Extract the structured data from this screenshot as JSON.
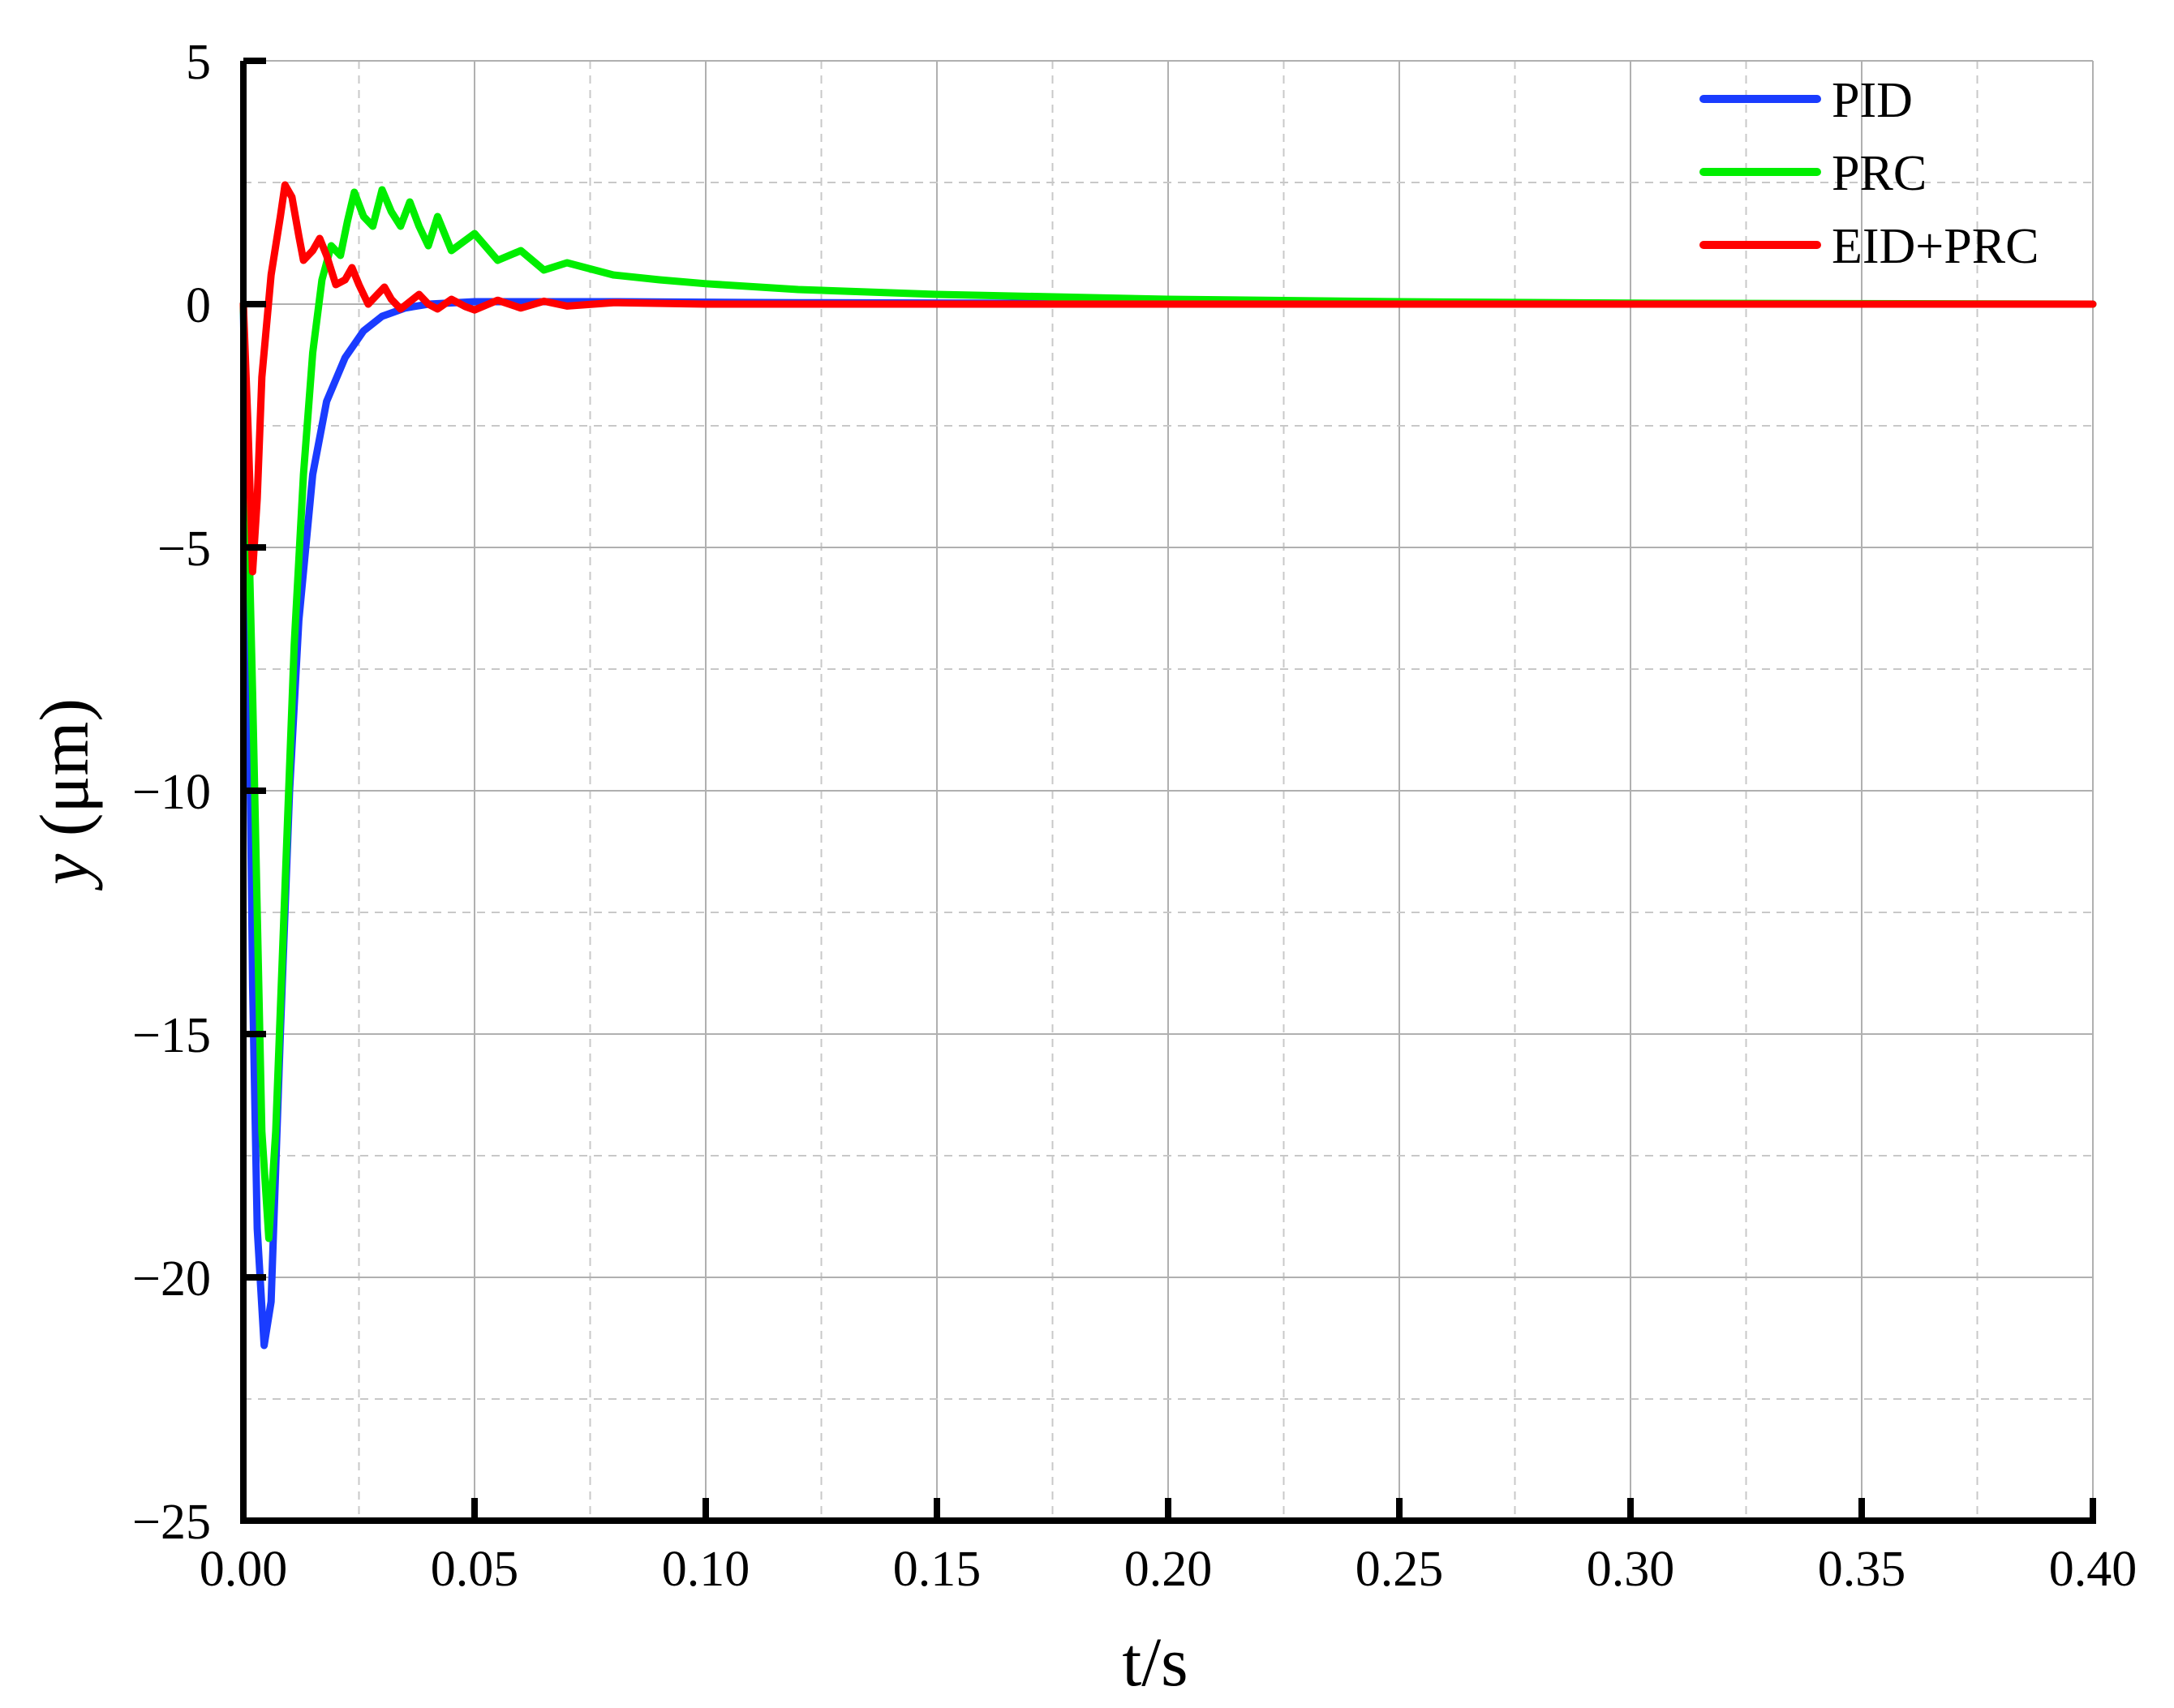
{
  "chart_data": {
    "type": "line",
    "title": "",
    "xlabel": "t/s",
    "ylabel_italic": "y",
    "ylabel_unit": " (μm)",
    "xlim": [
      0,
      0.4
    ],
    "ylim": [
      -25,
      5
    ],
    "x_ticks": [
      0,
      0.05,
      0.1,
      0.15,
      0.2,
      0.25,
      0.3,
      0.35,
      0.4
    ],
    "x_tick_labels": [
      "0.00",
      "0.05",
      "0.10",
      "0.15",
      "0.20",
      "0.25",
      "0.30",
      "0.35",
      "0.40"
    ],
    "y_ticks": [
      5,
      0,
      -5,
      -10,
      -15,
      -20,
      -25
    ],
    "y_tick_labels": [
      "5",
      "0",
      "−5",
      "−10",
      "−15",
      "−20",
      "−25"
    ],
    "grid": true,
    "legend_position": "top-right",
    "series": [
      {
        "name": "PID",
        "color": "#1a3cff",
        "points": [
          [
            0,
            0
          ],
          [
            0.001,
            -6
          ],
          [
            0.002,
            -14
          ],
          [
            0.003,
            -19
          ],
          [
            0.0045,
            -21.4
          ],
          [
            0.006,
            -20.5
          ],
          [
            0.008,
            -15
          ],
          [
            0.01,
            -10
          ],
          [
            0.012,
            -6.5
          ],
          [
            0.015,
            -3.5
          ],
          [
            0.018,
            -2
          ],
          [
            0.022,
            -1.1
          ],
          [
            0.026,
            -0.55
          ],
          [
            0.03,
            -0.25
          ],
          [
            0.035,
            -0.08
          ],
          [
            0.04,
            0
          ],
          [
            0.05,
            0.05
          ],
          [
            0.08,
            0.05
          ],
          [
            0.12,
            0.03
          ],
          [
            0.2,
            0.01
          ],
          [
            0.3,
            0
          ],
          [
            0.4,
            0
          ]
        ]
      },
      {
        "name": "PRC",
        "color": "#00ee00",
        "points": [
          [
            0,
            0
          ],
          [
            0.002,
            -8
          ],
          [
            0.004,
            -17
          ],
          [
            0.0055,
            -19.2
          ],
          [
            0.007,
            -17
          ],
          [
            0.009,
            -12
          ],
          [
            0.011,
            -7
          ],
          [
            0.013,
            -3.5
          ],
          [
            0.015,
            -1
          ],
          [
            0.017,
            0.5
          ],
          [
            0.019,
            1.2
          ],
          [
            0.021,
            1.0
          ],
          [
            0.0225,
            1.7
          ],
          [
            0.024,
            2.3
          ],
          [
            0.026,
            1.8
          ],
          [
            0.028,
            1.6
          ],
          [
            0.03,
            2.35
          ],
          [
            0.032,
            1.9
          ],
          [
            0.034,
            1.6
          ],
          [
            0.036,
            2.1
          ],
          [
            0.038,
            1.6
          ],
          [
            0.04,
            1.2
          ],
          [
            0.042,
            1.8
          ],
          [
            0.045,
            1.1
          ],
          [
            0.05,
            1.45
          ],
          [
            0.055,
            0.9
          ],
          [
            0.06,
            1.1
          ],
          [
            0.065,
            0.7
          ],
          [
            0.07,
            0.85
          ],
          [
            0.08,
            0.6
          ],
          [
            0.09,
            0.5
          ],
          [
            0.1,
            0.42
          ],
          [
            0.12,
            0.3
          ],
          [
            0.15,
            0.2
          ],
          [
            0.2,
            0.1
          ],
          [
            0.25,
            0.05
          ],
          [
            0.3,
            0.02
          ],
          [
            0.4,
            0
          ]
        ]
      },
      {
        "name": "EID+PRC",
        "color": "#ff0000",
        "points": [
          [
            0,
            0
          ],
          [
            0.001,
            -2.5
          ],
          [
            0.002,
            -5.5
          ],
          [
            0.003,
            -4
          ],
          [
            0.004,
            -1.5
          ],
          [
            0.006,
            0.6
          ],
          [
            0.008,
            1.8
          ],
          [
            0.009,
            2.45
          ],
          [
            0.0105,
            2.2
          ],
          [
            0.012,
            1.4
          ],
          [
            0.013,
            0.9
          ],
          [
            0.015,
            1.1
          ],
          [
            0.0165,
            1.35
          ],
          [
            0.018,
            1.0
          ],
          [
            0.02,
            0.4
          ],
          [
            0.022,
            0.5
          ],
          [
            0.0235,
            0.75
          ],
          [
            0.025,
            0.4
          ],
          [
            0.027,
            0.0
          ],
          [
            0.029,
            0.2
          ],
          [
            0.0305,
            0.35
          ],
          [
            0.032,
            0.1
          ],
          [
            0.034,
            -0.1
          ],
          [
            0.036,
            0.05
          ],
          [
            0.038,
            0.2
          ],
          [
            0.04,
            0.0
          ],
          [
            0.042,
            -0.1
          ],
          [
            0.045,
            0.1
          ],
          [
            0.048,
            -0.05
          ],
          [
            0.05,
            -0.12
          ],
          [
            0.055,
            0.08
          ],
          [
            0.06,
            -0.08
          ],
          [
            0.065,
            0.06
          ],
          [
            0.07,
            -0.04
          ],
          [
            0.08,
            0.03
          ],
          [
            0.1,
            0
          ],
          [
            0.2,
            0
          ],
          [
            0.4,
            0
          ]
        ]
      }
    ]
  }
}
